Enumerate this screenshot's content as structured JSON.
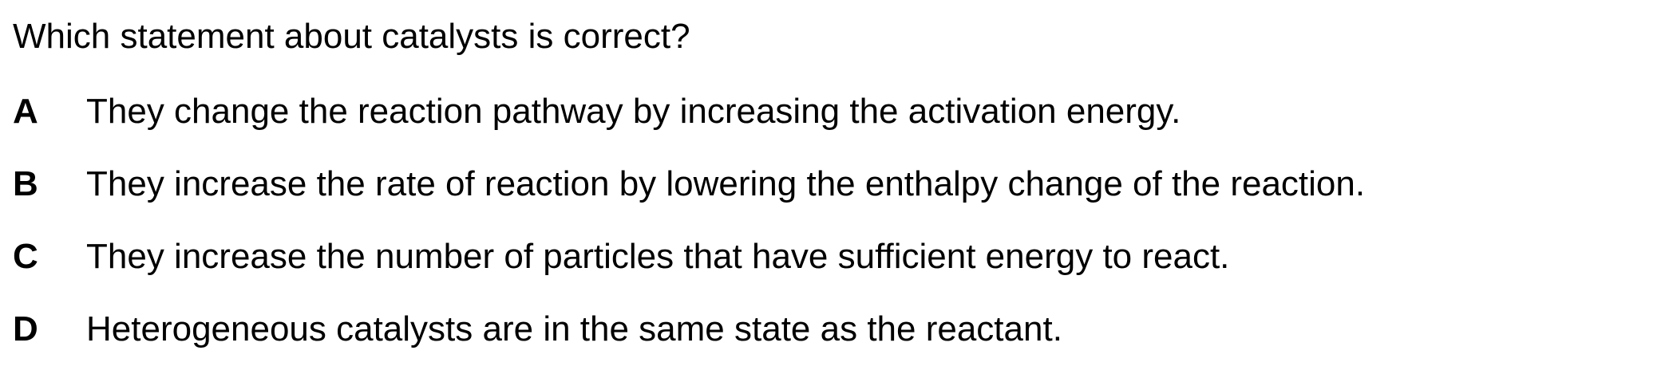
{
  "question": {
    "stem": "Which statement about catalysts is correct?"
  },
  "options": [
    {
      "letter": "A",
      "text": "They change the reaction pathway by increasing the activation energy."
    },
    {
      "letter": "B",
      "text": "They increase the rate of reaction by lowering the enthalpy change of the reaction."
    },
    {
      "letter": "C",
      "text": "They increase the number of particles that have sufficient energy to react."
    },
    {
      "letter": "D",
      "text": "Heterogeneous catalysts are in the same state as the reactant."
    }
  ]
}
